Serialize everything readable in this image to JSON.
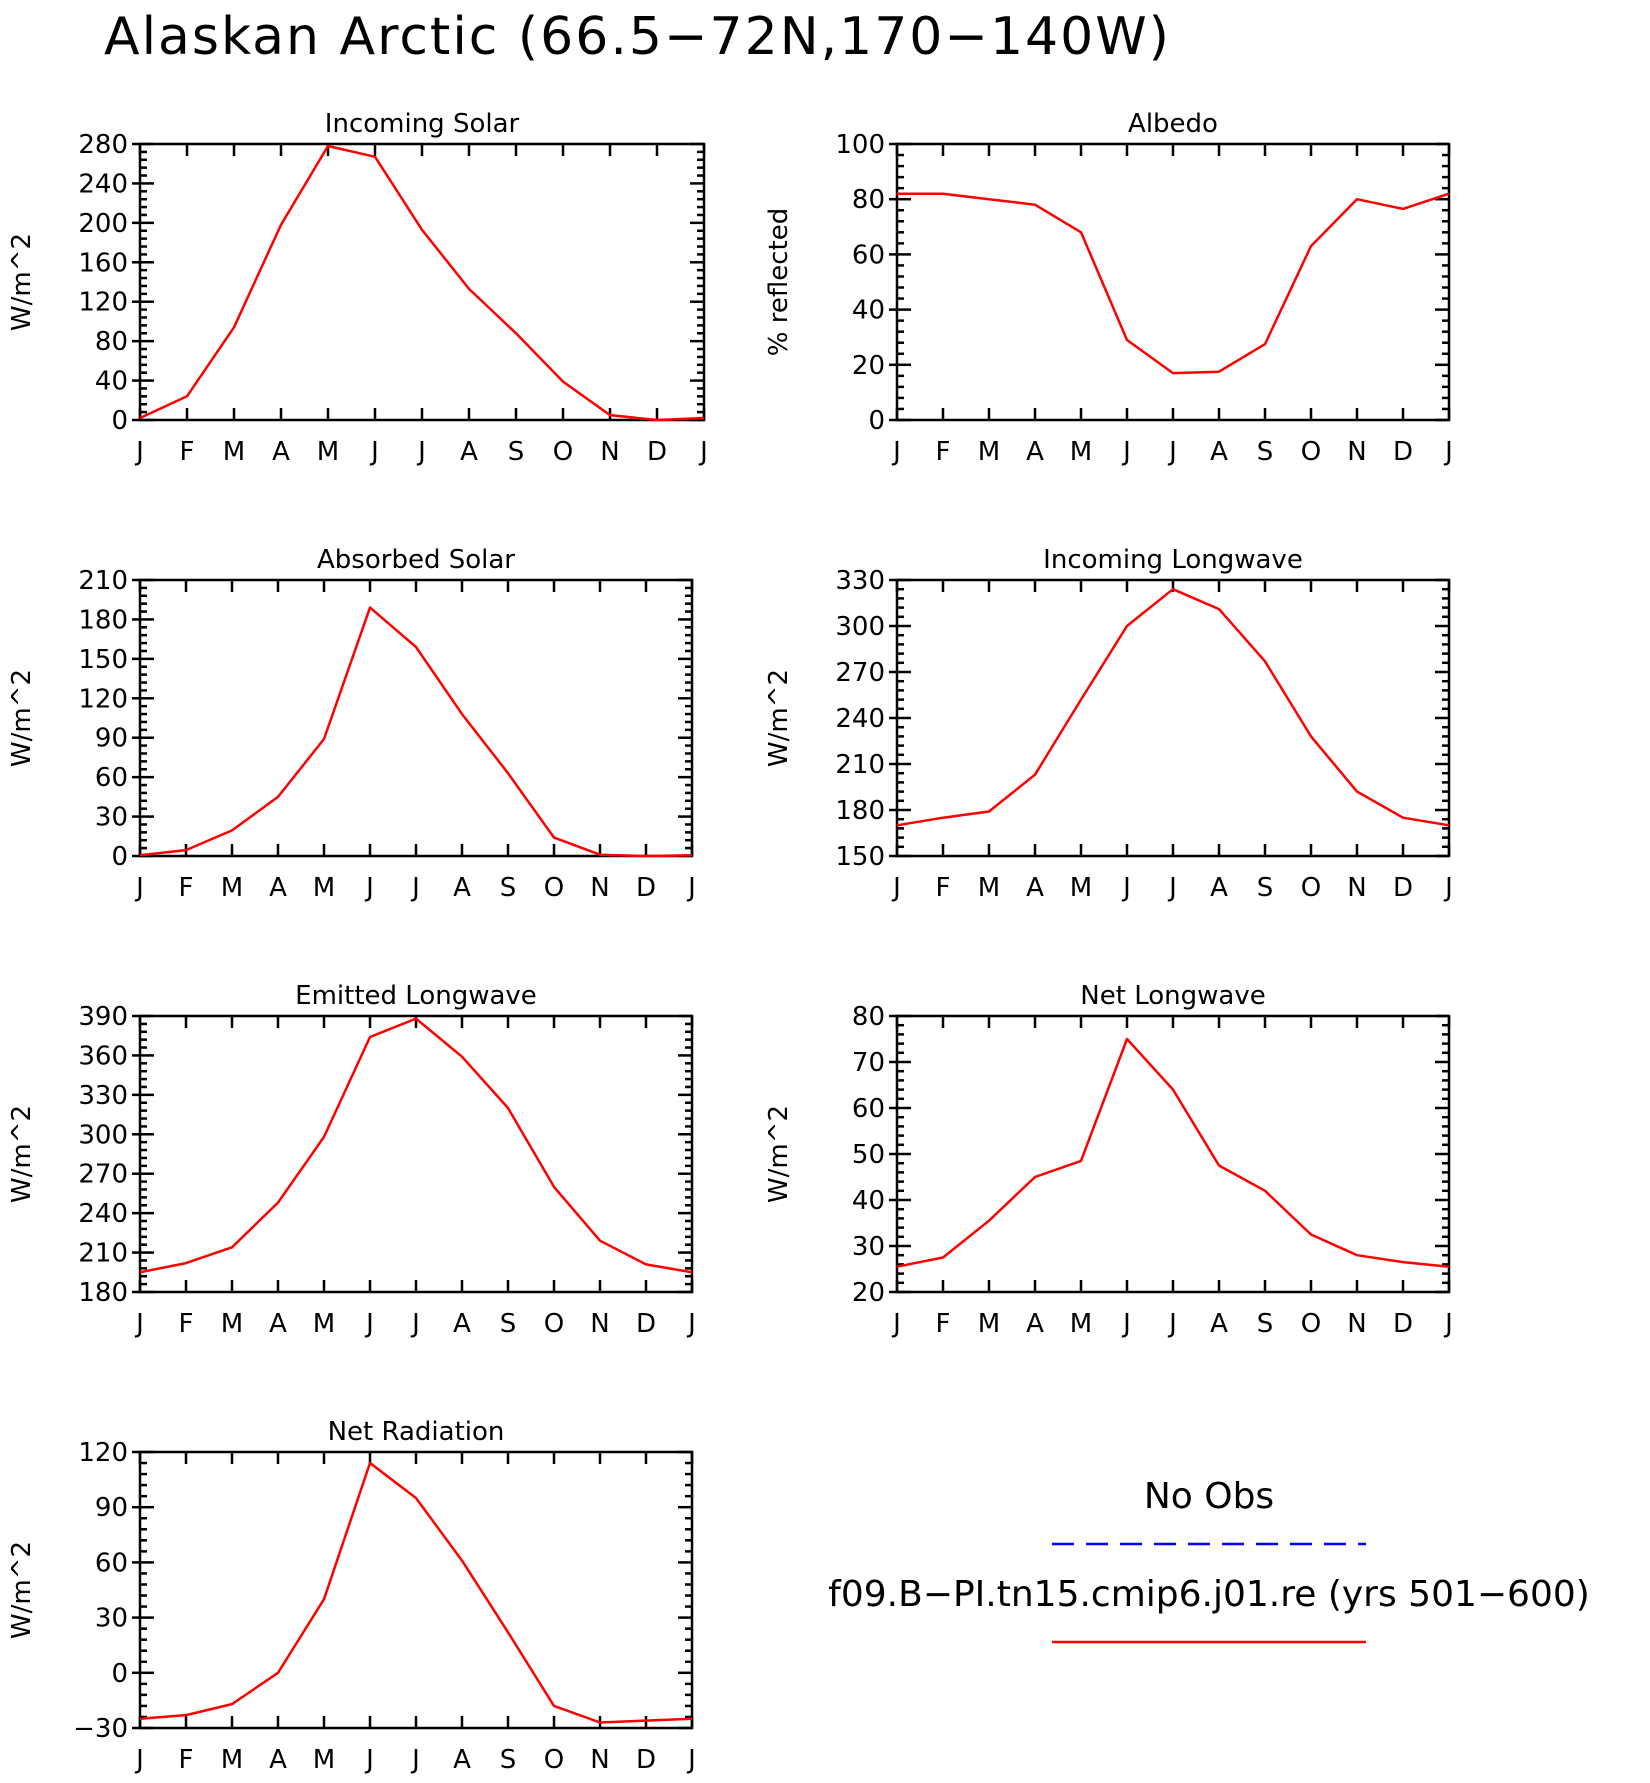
{
  "figure": {
    "title": "Alaskan Arctic (66.5−72N,170−140W)"
  },
  "legend": {
    "obs_label": "No Obs",
    "obs_color": "#0000ff",
    "model_label": "f09.B−PI.tn15.cmip6.j01.re (yrs 501−600)",
    "model_color": "#ff0000"
  },
  "chart_data": [
    {
      "type": "line",
      "title": "Incoming Solar",
      "ylabel": "W/m^2",
      "categories": [
        "J",
        "F",
        "M",
        "A",
        "M",
        "J",
        "J",
        "A",
        "S",
        "O",
        "N",
        "D",
        "J"
      ],
      "ylim": [
        0,
        280
      ],
      "yticks": [
        0,
        40,
        80,
        120,
        160,
        200,
        240,
        280
      ],
      "ytick_labels": [
        "0",
        "40",
        "80",
        "120",
        "160",
        "200",
        "240",
        "280"
      ],
      "series": [
        {
          "values": [
            2,
            24,
            94,
            198,
            278,
            267,
            193,
            133,
            88,
            39,
            5,
            0,
            2
          ]
        }
      ]
    },
    {
      "type": "line",
      "title": "Albedo",
      "ylabel": "% reflected",
      "categories": [
        "J",
        "F",
        "M",
        "A",
        "M",
        "J",
        "J",
        "A",
        "S",
        "O",
        "N",
        "D",
        "J"
      ],
      "ylim": [
        0,
        100
      ],
      "yticks": [
        0,
        20,
        40,
        60,
        80,
        100
      ],
      "ytick_labels": [
        "0",
        "20",
        "40",
        "60",
        "80",
        "100"
      ],
      "series": [
        {
          "values": [
            82,
            82,
            80,
            78,
            68,
            29,
            17,
            17.5,
            27.5,
            63,
            80,
            76.5,
            82
          ]
        }
      ]
    },
    {
      "type": "line",
      "title": "Absorbed Solar",
      "ylabel": "W/m^2",
      "categories": [
        "J",
        "F",
        "M",
        "A",
        "M",
        "J",
        "J",
        "A",
        "S",
        "O",
        "N",
        "D",
        "J"
      ],
      "ylim": [
        0,
        210
      ],
      "yticks": [
        0,
        30,
        60,
        90,
        120,
        150,
        180,
        210
      ],
      "ytick_labels": [
        "0",
        "30",
        "60",
        "90",
        "120",
        "150",
        "180",
        "210"
      ],
      "series": [
        {
          "values": [
            0.5,
            4.5,
            19.5,
            45,
            89,
            189,
            159,
            108,
            63,
            14,
            1,
            0,
            0.5
          ]
        }
      ]
    },
    {
      "type": "line",
      "title": "Incoming Longwave",
      "ylabel": "W/m^2",
      "categories": [
        "J",
        "F",
        "M",
        "A",
        "M",
        "J",
        "J",
        "A",
        "S",
        "O",
        "N",
        "D",
        "J"
      ],
      "ylim": [
        150,
        330
      ],
      "yticks": [
        150,
        180,
        210,
        240,
        270,
        300,
        330
      ],
      "ytick_labels": [
        "150",
        "180",
        "210",
        "240",
        "270",
        "300",
        "330"
      ],
      "series": [
        {
          "values": [
            170,
            175,
            179,
            203,
            252,
            300,
            324,
            311,
            277,
            228,
            192,
            175,
            170
          ]
        }
      ]
    },
    {
      "type": "line",
      "title": "Emitted Longwave",
      "ylabel": "W/m^2",
      "categories": [
        "J",
        "F",
        "M",
        "A",
        "M",
        "J",
        "J",
        "A",
        "S",
        "O",
        "N",
        "D",
        "J"
      ],
      "ylim": [
        180,
        390
      ],
      "yticks": [
        180,
        210,
        240,
        270,
        300,
        330,
        360,
        390
      ],
      "ytick_labels": [
        "180",
        "210",
        "240",
        "270",
        "300",
        "330",
        "360",
        "390"
      ],
      "series": [
        {
          "values": [
            195,
            202,
            214,
            248,
            298,
            374,
            388,
            359,
            320,
            260,
            219,
            201,
            195
          ]
        }
      ]
    },
    {
      "type": "line",
      "title": "Net Longwave",
      "ylabel": "W/m^2",
      "categories": [
        "J",
        "F",
        "M",
        "A",
        "M",
        "J",
        "J",
        "A",
        "S",
        "O",
        "N",
        "D",
        "J"
      ],
      "ylim": [
        20,
        80
      ],
      "yticks": [
        20,
        30,
        40,
        50,
        60,
        70,
        80
      ],
      "ytick_labels": [
        "20",
        "30",
        "40",
        "50",
        "60",
        "70",
        "80"
      ],
      "series": [
        {
          "values": [
            25.5,
            27.5,
            35.5,
            45,
            48.5,
            75,
            64,
            47.5,
            42,
            32.5,
            28,
            26.5,
            25.5
          ]
        }
      ]
    },
    {
      "type": "line",
      "title": "Net Radiation",
      "ylabel": "W/m^2",
      "categories": [
        "J",
        "F",
        "M",
        "A",
        "M",
        "J",
        "J",
        "A",
        "S",
        "O",
        "N",
        "D",
        "J"
      ],
      "ylim": [
        -30,
        120
      ],
      "yticks": [
        -30,
        0,
        30,
        60,
        90,
        120
      ],
      "ytick_labels": [
        "−30",
        "0",
        "30",
        "60",
        "90",
        "120"
      ],
      "series": [
        {
          "values": [
            -25,
            -23,
            -17,
            0,
            40,
            114,
            95,
            61,
            22,
            -18,
            -27,
            -26,
            -25
          ]
        }
      ]
    }
  ]
}
